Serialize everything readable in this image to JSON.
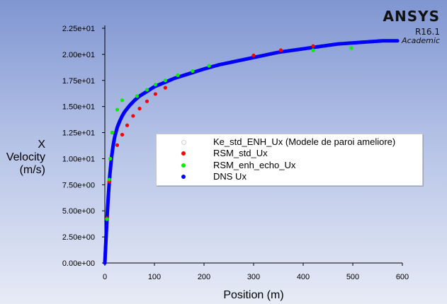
{
  "brand": {
    "name": "ANSYS",
    "version": "R16.1",
    "edition": "Academic"
  },
  "colors": {
    "ke_std": "#ffffff",
    "rsm_std": "#ff0000",
    "rsm_enh": "#00ee00",
    "dns": "#0000ff"
  },
  "chart_data": {
    "type": "scatter",
    "xlabel": "Position (m)",
    "ylabel_lines": [
      "X",
      "Velocity",
      "(m/s)"
    ],
    "xlim": [
      0,
      600
    ],
    "ylim": [
      0,
      22.5
    ],
    "x_ticks": [
      "0",
      "100",
      "200",
      "300",
      "400",
      "500",
      "600"
    ],
    "y_ticks": [
      "0.00e+00",
      "2.50e+00",
      "5.00e+00",
      "7.50e+00",
      "1.00e+01",
      "1.25e+01",
      "1.50e+01",
      "1.75e+01",
      "2.00e+01",
      "2.25e+01"
    ],
    "legend_position": "center-right",
    "series": [
      {
        "name": "Ke_std_ENH_Ux (Modele de paroi ameliore)",
        "x": [],
        "y": []
      },
      {
        "name": "RSM_std_Ux",
        "x": [
          4,
          9,
          11,
          15,
          25,
          35,
          45,
          57,
          70,
          85,
          102,
          122,
          300,
          355,
          420
        ],
        "y": [
          4.3,
          7.8,
          10.0,
          12.5,
          11.3,
          12.3,
          13.2,
          14.1,
          14.8,
          15.5,
          16.2,
          16.8,
          19.9,
          20.4,
          20.8
        ]
      },
      {
        "name": "RSM_enh_echo_Ux",
        "x": [
          4,
          9,
          11,
          15,
          25,
          35,
          65,
          85,
          102,
          122,
          147,
          177,
          210,
          420,
          497
        ],
        "y": [
          4.2,
          8.0,
          10.0,
          12.5,
          14.7,
          15.6,
          16.0,
          16.6,
          17.1,
          17.5,
          18.0,
          18.4,
          18.9,
          20.4,
          20.6
        ]
      },
      {
        "name": "DNS Ux",
        "x": [
          0,
          0.5,
          1,
          1.5,
          2,
          2.5,
          3,
          4,
          5,
          6,
          7,
          8,
          9,
          10,
          12,
          14,
          16,
          18,
          20,
          25,
          30,
          35,
          40,
          50,
          60,
          70,
          80,
          90,
          100,
          120,
          140,
          160,
          180,
          200,
          230,
          260,
          290,
          320,
          350,
          380,
          410,
          440,
          470,
          500,
          530,
          560,
          590
        ],
        "y": [
          0,
          0.5,
          1.0,
          1.5,
          2.0,
          2.5,
          3.0,
          3.9,
          4.8,
          5.6,
          6.4,
          7.1,
          7.8,
          8.4,
          9.4,
          10.3,
          11.0,
          11.6,
          12.1,
          13.0,
          13.6,
          14.1,
          14.5,
          15.1,
          15.6,
          16.0,
          16.3,
          16.6,
          16.9,
          17.3,
          17.7,
          18.0,
          18.3,
          18.6,
          19.0,
          19.3,
          19.6,
          19.9,
          20.2,
          20.4,
          20.6,
          20.8,
          21.0,
          21.1,
          21.2,
          21.3,
          21.3
        ]
      }
    ]
  }
}
